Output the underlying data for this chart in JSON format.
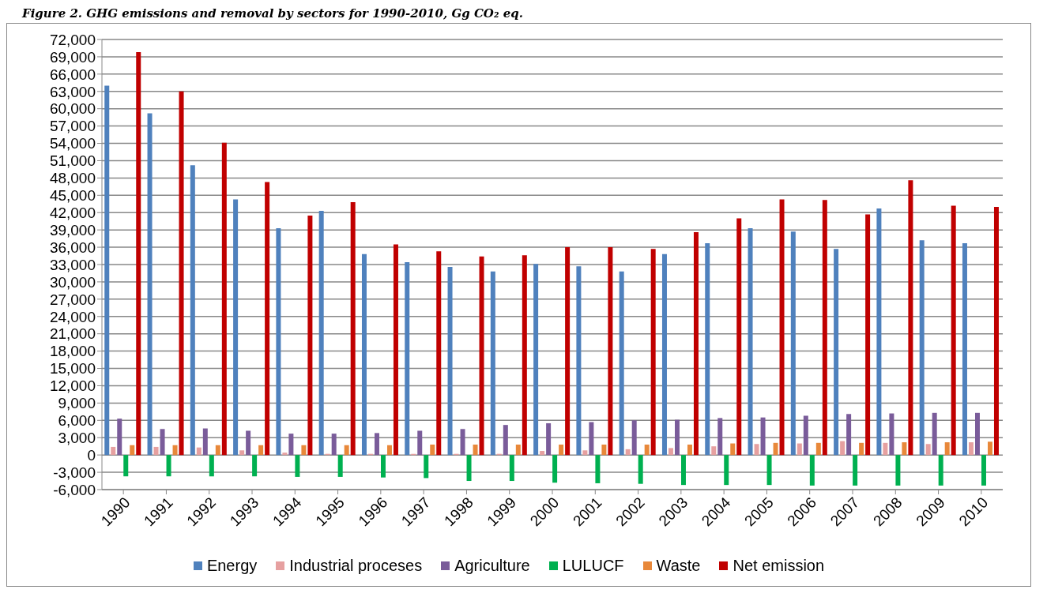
{
  "chart_data": {
    "type": "bar",
    "title": "Figure 2. GHG emissions and removal by sectors for 1990-2010, Gg CO₂ eq.",
    "categories": [
      "1990",
      "1991",
      "1992",
      "1993",
      "1994",
      "1995",
      "1996",
      "1997",
      "1998",
      "1999",
      "2000",
      "2001",
      "2002",
      "2003",
      "2004",
      "2005",
      "2006",
      "2007",
      "2008",
      "2009",
      "2010"
    ],
    "series": [
      {
        "name": "Energy",
        "color": "#4f81bd",
        "values": [
          64000,
          59200,
          50200,
          44300,
          39300,
          42300,
          34800,
          33400,
          32600,
          31800,
          33100,
          32700,
          31800,
          34800,
          36700,
          39300,
          38700,
          35700,
          42700,
          37200,
          36700
        ]
      },
      {
        "name": "Industrial proceses",
        "color": "#e6a0a0",
        "values": [
          1400,
          1400,
          1300,
          800,
          400,
          200,
          200,
          200,
          200,
          200,
          700,
          800,
          1000,
          1200,
          1500,
          1900,
          2000,
          2400,
          2100,
          1900,
          2200
        ]
      },
      {
        "name": "Agriculture",
        "color": "#7a5c9a",
        "values": [
          6300,
          4500,
          4600,
          4200,
          3700,
          3700,
          3800,
          4200,
          4500,
          5200,
          5500,
          5700,
          6000,
          6100,
          6400,
          6500,
          6800,
          7100,
          7200,
          7300,
          7300
        ]
      },
      {
        "name": "LULUCF",
        "color": "#00b050",
        "values": [
          -3700,
          -3700,
          -3700,
          -3700,
          -3800,
          -3800,
          -3900,
          -4000,
          -4500,
          -4500,
          -4800,
          -4900,
          -5000,
          -5200,
          -5200,
          -5200,
          -5300,
          -5300,
          -5300,
          -5300,
          -5300
        ]
      },
      {
        "name": "Waste",
        "color": "#e8883a",
        "values": [
          1700,
          1700,
          1700,
          1700,
          1700,
          1700,
          1700,
          1800,
          1800,
          1800,
          1800,
          1800,
          1800,
          1800,
          2000,
          2100,
          2100,
          2100,
          2200,
          2200,
          2300
        ]
      },
      {
        "name": "Net emission",
        "color": "#c00000",
        "values": [
          69800,
          63000,
          54100,
          47300,
          41500,
          43800,
          36500,
          35300,
          34400,
          34600,
          36000,
          36000,
          35700,
          38600,
          41000,
          44300,
          44200,
          41700,
          47600,
          43200,
          43000
        ]
      }
    ],
    "ylim": [
      -6000,
      72000
    ],
    "yticks": [
      {
        "value": -6000,
        "label": "-6,000"
      },
      {
        "value": -3000,
        "label": "-3,000"
      },
      0,
      {
        "value": 3000,
        "label": "3,000"
      },
      {
        "value": 6000,
        "label": "6,000"
      },
      {
        "value": 9000,
        "label": "9,000"
      },
      {
        "value": 12000,
        "label": "12,000"
      },
      {
        "value": 15000,
        "label": "15,000"
      },
      {
        "value": 18000,
        "label": "18,000"
      },
      {
        "value": 21000,
        "label": "21,000"
      },
      {
        "value": 24000,
        "label": "24,000"
      },
      {
        "value": 27000,
        "label": "27,000"
      },
      {
        "value": 30000,
        "label": "30,000"
      },
      {
        "value": 33000,
        "label": "33,000"
      },
      {
        "value": 36000,
        "label": "36,000"
      },
      {
        "value": 39000,
        "label": "39,000"
      },
      {
        "value": 42000,
        "label": "42,000"
      },
      {
        "value": 45000,
        "label": "45,000"
      },
      {
        "value": 48000,
        "label": "48,000"
      },
      {
        "value": 51000,
        "label": "51,000"
      },
      {
        "value": 54000,
        "label": "54,000"
      },
      {
        "value": 57000,
        "label": "57,000"
      },
      {
        "value": 60000,
        "label": "60,000"
      },
      {
        "value": 63000,
        "label": "63,000"
      },
      {
        "value": 66000,
        "label": "66,000"
      },
      {
        "value": 69000,
        "label": "69,000"
      },
      {
        "value": 72000,
        "label": "72,000"
      }
    ],
    "grid": "y",
    "legend": "bottom"
  }
}
